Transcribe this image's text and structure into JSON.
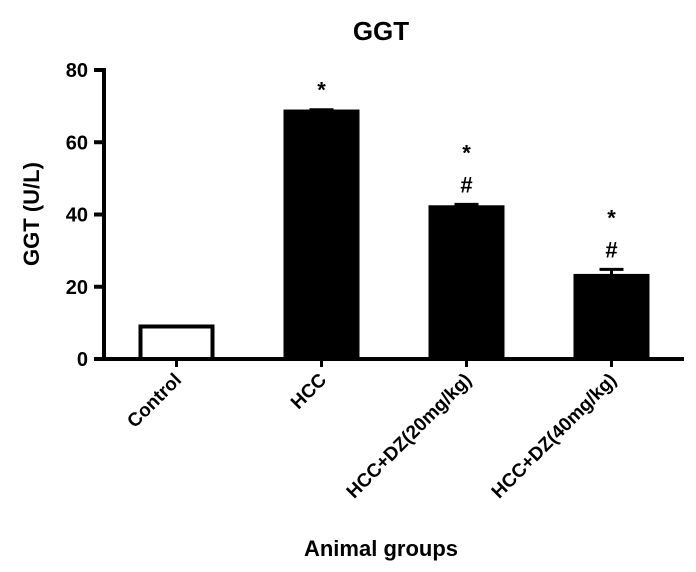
{
  "chart_data": {
    "type": "bar",
    "title": "GGT",
    "xlabel": "Animal groups",
    "ylabel": "GGT (U/L)",
    "ylim": [
      0,
      80
    ],
    "yticks": [
      "0",
      "20",
      "40",
      "60",
      "80"
    ],
    "categories": [
      "Control",
      "HCC",
      "HCC+DZ(20mg/kg)",
      "HCC+DZ(40mg/kg)"
    ],
    "values": [
      9,
      68.5,
      42,
      23
    ],
    "errors": [
      0,
      0.5,
      0.8,
      1.8
    ],
    "bar_fills": [
      "#ffffff",
      "#000000",
      "#000000",
      "#000000"
    ],
    "annotations": [
      {
        "category": "HCC",
        "marks": [
          "*"
        ]
      },
      {
        "category": "HCC+DZ(20mg/kg)",
        "marks": [
          "*",
          "#"
        ]
      },
      {
        "category": "HCC+DZ(40mg/kg)",
        "marks": [
          "*",
          "#"
        ]
      }
    ],
    "grid": false,
    "legend": "none"
  }
}
